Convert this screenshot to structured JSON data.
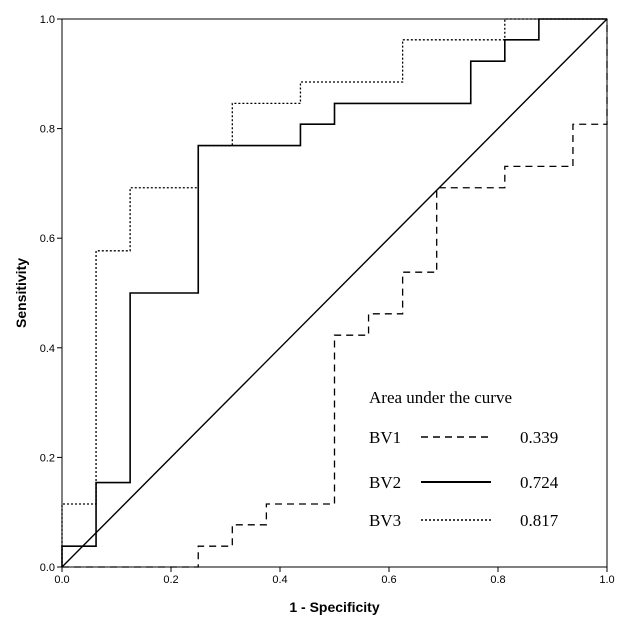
{
  "chart_data": {
    "type": "line",
    "xlabel": "1 - Specificity",
    "ylabel": "Sensitivity",
    "xlim": [
      0,
      1
    ],
    "ylim": [
      0,
      1
    ],
    "x_ticks": [
      "0.0",
      "0.2",
      "0.4",
      "0.6",
      "0.8",
      "1.0"
    ],
    "y_ticks": [
      "0.0",
      "0.2",
      "0.4",
      "0.6",
      "0.8",
      "1.0"
    ],
    "grid": false,
    "legend": {
      "title": "Area under the curve",
      "placement": "bottom-right",
      "entries": [
        {
          "label": "BV1",
          "value": "0.339",
          "style": "dashed"
        },
        {
          "label": "BV2",
          "value": "0.724",
          "style": "solid"
        },
        {
          "label": "BV3",
          "value": "0.817",
          "style": "dotted"
        }
      ]
    },
    "reference_line": {
      "x": [
        0,
        1
      ],
      "y": [
        0,
        1
      ]
    },
    "series": [
      {
        "name": "BV1",
        "style": "dashed",
        "x": [
          0,
          0.25,
          0.25,
          0.3125,
          0.3125,
          0.375,
          0.375,
          0.5,
          0.5,
          0.5625,
          0.5625,
          0.625,
          0.625,
          0.6875,
          0.6875,
          0.8125,
          0.8125,
          0.9375,
          0.9375,
          1,
          1
        ],
        "y": [
          0,
          0,
          0.038,
          0.038,
          0.077,
          0.077,
          0.115,
          0.115,
          0.423,
          0.423,
          0.462,
          0.462,
          0.538,
          0.538,
          0.692,
          0.692,
          0.731,
          0.731,
          0.808,
          0.808,
          1
        ]
      },
      {
        "name": "BV2",
        "style": "solid",
        "x": [
          0,
          0,
          0.0625,
          0.0625,
          0.125,
          0.125,
          0.25,
          0.25,
          0.4375,
          0.4375,
          0.5,
          0.5,
          0.75,
          0.75,
          0.8125,
          0.8125,
          0.875,
          0.875,
          1
        ],
        "y": [
          0,
          0.038,
          0.038,
          0.154,
          0.154,
          0.5,
          0.5,
          0.769,
          0.769,
          0.808,
          0.808,
          0.846,
          0.846,
          0.923,
          0.923,
          0.962,
          0.962,
          1,
          1
        ]
      },
      {
        "name": "BV3",
        "style": "dotted",
        "x": [
          0,
          0,
          0.0625,
          0.0625,
          0.125,
          0.125,
          0.25,
          0.25,
          0.3125,
          0.3125,
          0.4375,
          0.4375,
          0.625,
          0.625,
          0.8125,
          0.8125,
          1
        ],
        "y": [
          0,
          0.115,
          0.115,
          0.577,
          0.577,
          0.692,
          0.692,
          0.769,
          0.769,
          0.846,
          0.846,
          0.885,
          0.885,
          0.962,
          0.962,
          1,
          1
        ]
      }
    ]
  }
}
